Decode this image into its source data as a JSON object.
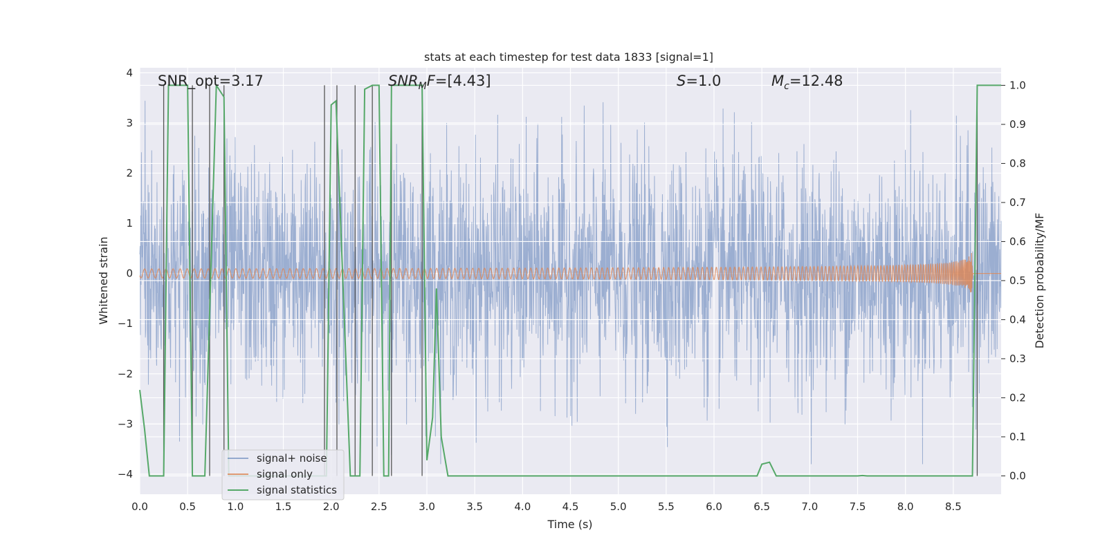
{
  "chart_data": {
    "type": "line",
    "title": "stats at each timestep for test data 1833 [signal=1]",
    "xlabel": "Time (s)",
    "ylabel": "Whitened strain",
    "y2label": "Detection probability/MF",
    "xlim": [
      0.0,
      9.0
    ],
    "ylim": [
      -4.4,
      4.1
    ],
    "y2lim": [
      -0.047,
      1.045
    ],
    "x_ticks": [
      "0.0",
      "0.5",
      "1.0",
      "1.5",
      "2.0",
      "2.5",
      "3.0",
      "3.5",
      "4.0",
      "4.5",
      "5.0",
      "5.5",
      "6.0",
      "6.5",
      "7.0",
      "7.5",
      "8.0",
      "8.5"
    ],
    "y_ticks": [
      "4",
      "3",
      "2",
      "1",
      "0",
      "−1",
      "−2",
      "−3",
      "−4"
    ],
    "y2_ticks": [
      "1.0",
      "0.9",
      "0.8",
      "0.7",
      "0.6",
      "0.5",
      "0.4",
      "0.3",
      "0.2",
      "0.1",
      "0.0"
    ],
    "grid": true,
    "legend_position": "lower-left",
    "annotations": {
      "snr_opt_prefix": "SNR_opt=",
      "snr_opt_value": "3.17",
      "snr_mf_main": "SNR",
      "snr_mf_sub": "M",
      "snr_mf_tail": "F",
      "snr_mf_value": "=[4.43]",
      "s_symbol": "S",
      "s_value": "=1.0",
      "mc_symbol": "M",
      "mc_sub": "c",
      "mc_value": "=12.48"
    },
    "series": [
      {
        "name": "signal+ noise",
        "axis": "left",
        "color": "#4c72b0",
        "description_values": "whitened noisy strain, approximately within [-3.8, 3.8]"
      },
      {
        "name": "signal only",
        "axis": "left",
        "color": "#dd8452",
        "chirp_peak_time": 8.7,
        "chirp_peak_amplitude": 0.5
      },
      {
        "name": "signal statistics",
        "axis": "right",
        "color": "#55a868",
        "x": [
          0.0,
          0.05,
          0.1,
          0.25,
          0.3,
          0.5,
          0.55,
          0.62,
          0.68,
          0.8,
          0.88,
          0.93,
          1.0,
          1.05,
          1.5,
          1.95,
          2.0,
          2.05,
          2.2,
          2.3,
          2.35,
          2.43,
          2.5,
          2.55,
          2.6,
          2.63,
          2.7,
          2.95,
          3.0,
          3.06,
          3.1,
          3.15,
          3.22,
          3.3,
          6.45,
          6.5,
          6.58,
          6.65,
          7.5,
          7.55,
          7.6,
          8.7,
          8.75,
          8.8,
          9.0
        ],
        "y": [
          0.22,
          0.12,
          0.0,
          0.0,
          1.0,
          1.0,
          0.0,
          0.0,
          0.0,
          1.0,
          0.97,
          0.0,
          0.0,
          0.0,
          0.0,
          0.0,
          0.95,
          0.96,
          0.0,
          0.0,
          0.99,
          1.0,
          1.0,
          0.0,
          0.0,
          1.0,
          1.0,
          1.0,
          0.04,
          0.15,
          0.48,
          0.1,
          0.0,
          0.0,
          0.0,
          0.03,
          0.035,
          0.0,
          0.0,
          0.001,
          0.0,
          0.0,
          1.0,
          1.0,
          1.0
        ]
      }
    ],
    "vertical_markers": [
      0.25,
      0.55,
      0.73,
      0.88,
      1.93,
      2.06,
      2.25,
      2.43,
      2.63,
      2.95,
      8.75
    ]
  }
}
